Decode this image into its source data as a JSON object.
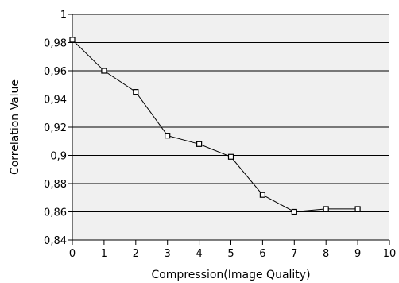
{
  "chart_data": {
    "type": "line",
    "xlabel": "Compression(Image Quality)",
    "ylabel": "Correlation Value",
    "xlim": [
      0,
      10
    ],
    "ylim": [
      0.84,
      1
    ],
    "x_ticks": [
      "0",
      "1",
      "2",
      "3",
      "4",
      "5",
      "6",
      "7",
      "8",
      "9",
      "10"
    ],
    "y_ticks": [
      "0,84",
      "0,86",
      "0,88",
      "0,9",
      "0,92",
      "0,94",
      "0,96",
      "0,98",
      "1"
    ],
    "grid": "horizontal",
    "marker": "square",
    "series": [
      {
        "x": [
          0,
          1,
          2,
          3,
          4,
          5,
          6,
          7,
          8,
          9
        ],
        "values": [
          0.982,
          0.96,
          0.945,
          0.914,
          0.908,
          0.899,
          0.872,
          0.86,
          0.862,
          0.862
        ]
      }
    ],
    "colors": {
      "plot_background": "#f0f0f0",
      "line": "#000000",
      "marker_fill": "#ffffff",
      "grid": "#000000"
    }
  }
}
